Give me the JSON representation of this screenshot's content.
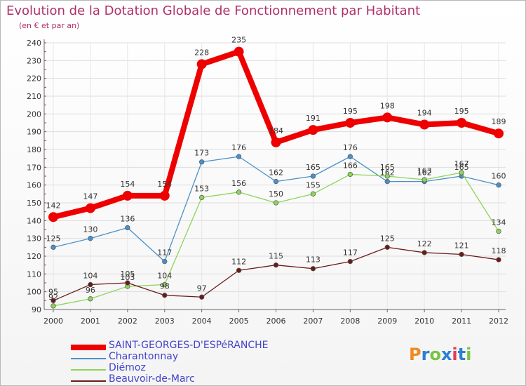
{
  "title": "Evolution de la Dotation Globale de Fonctionnement par Habitant",
  "subtitle": "(en € et par an)",
  "logo": {
    "text": "Proxiti",
    "letters": [
      "P",
      "r",
      "o",
      "x",
      "i",
      "t",
      "i"
    ],
    "colors": [
      "#f08a20",
      "#2a7fd4",
      "#7cc242",
      "#2a7fd4",
      "#e8384f",
      "#2a7fd4",
      "#7cc242"
    ]
  },
  "chart_data": {
    "type": "line",
    "title": "Evolution de la Dotation Globale de Fonctionnement par Habitant",
    "ylabel": "(en € et par an)",
    "x": [
      "2000",
      "2001",
      "2002",
      "2003",
      "2004",
      "2005",
      "2006",
      "2007",
      "2008",
      "2009",
      "2010",
      "2011",
      "2012"
    ],
    "ylim": [
      90,
      240
    ],
    "yticks": [
      90,
      100,
      110,
      120,
      130,
      140,
      150,
      160,
      170,
      180,
      190,
      200,
      210,
      220,
      230,
      240
    ],
    "grid": true,
    "legend_position": "bottom-left",
    "series": [
      {
        "name": "SAINT-GEORGES-D'ESPéRANCHE",
        "color": "#ee0000",
        "values": [
          142,
          147,
          154,
          154,
          228,
          235,
          184,
          191,
          195,
          198,
          194,
          195,
          189
        ]
      },
      {
        "name": "Charantonnay",
        "color": "#4a90c8",
        "values": [
          125,
          130,
          136,
          117,
          173,
          176,
          162,
          165,
          176,
          162,
          162,
          165,
          160
        ]
      },
      {
        "name": "Diémoz",
        "color": "#8dd45a",
        "values": [
          92,
          96,
          103,
          104,
          153,
          156,
          150,
          155,
          166,
          165,
          163,
          167,
          134
        ]
      },
      {
        "name": "Beauvoir-de-Marc",
        "color": "#6b1a1a",
        "values": [
          95,
          104,
          105,
          98,
          97,
          112,
          115,
          113,
          117,
          125,
          122,
          121,
          118
        ]
      }
    ]
  }
}
